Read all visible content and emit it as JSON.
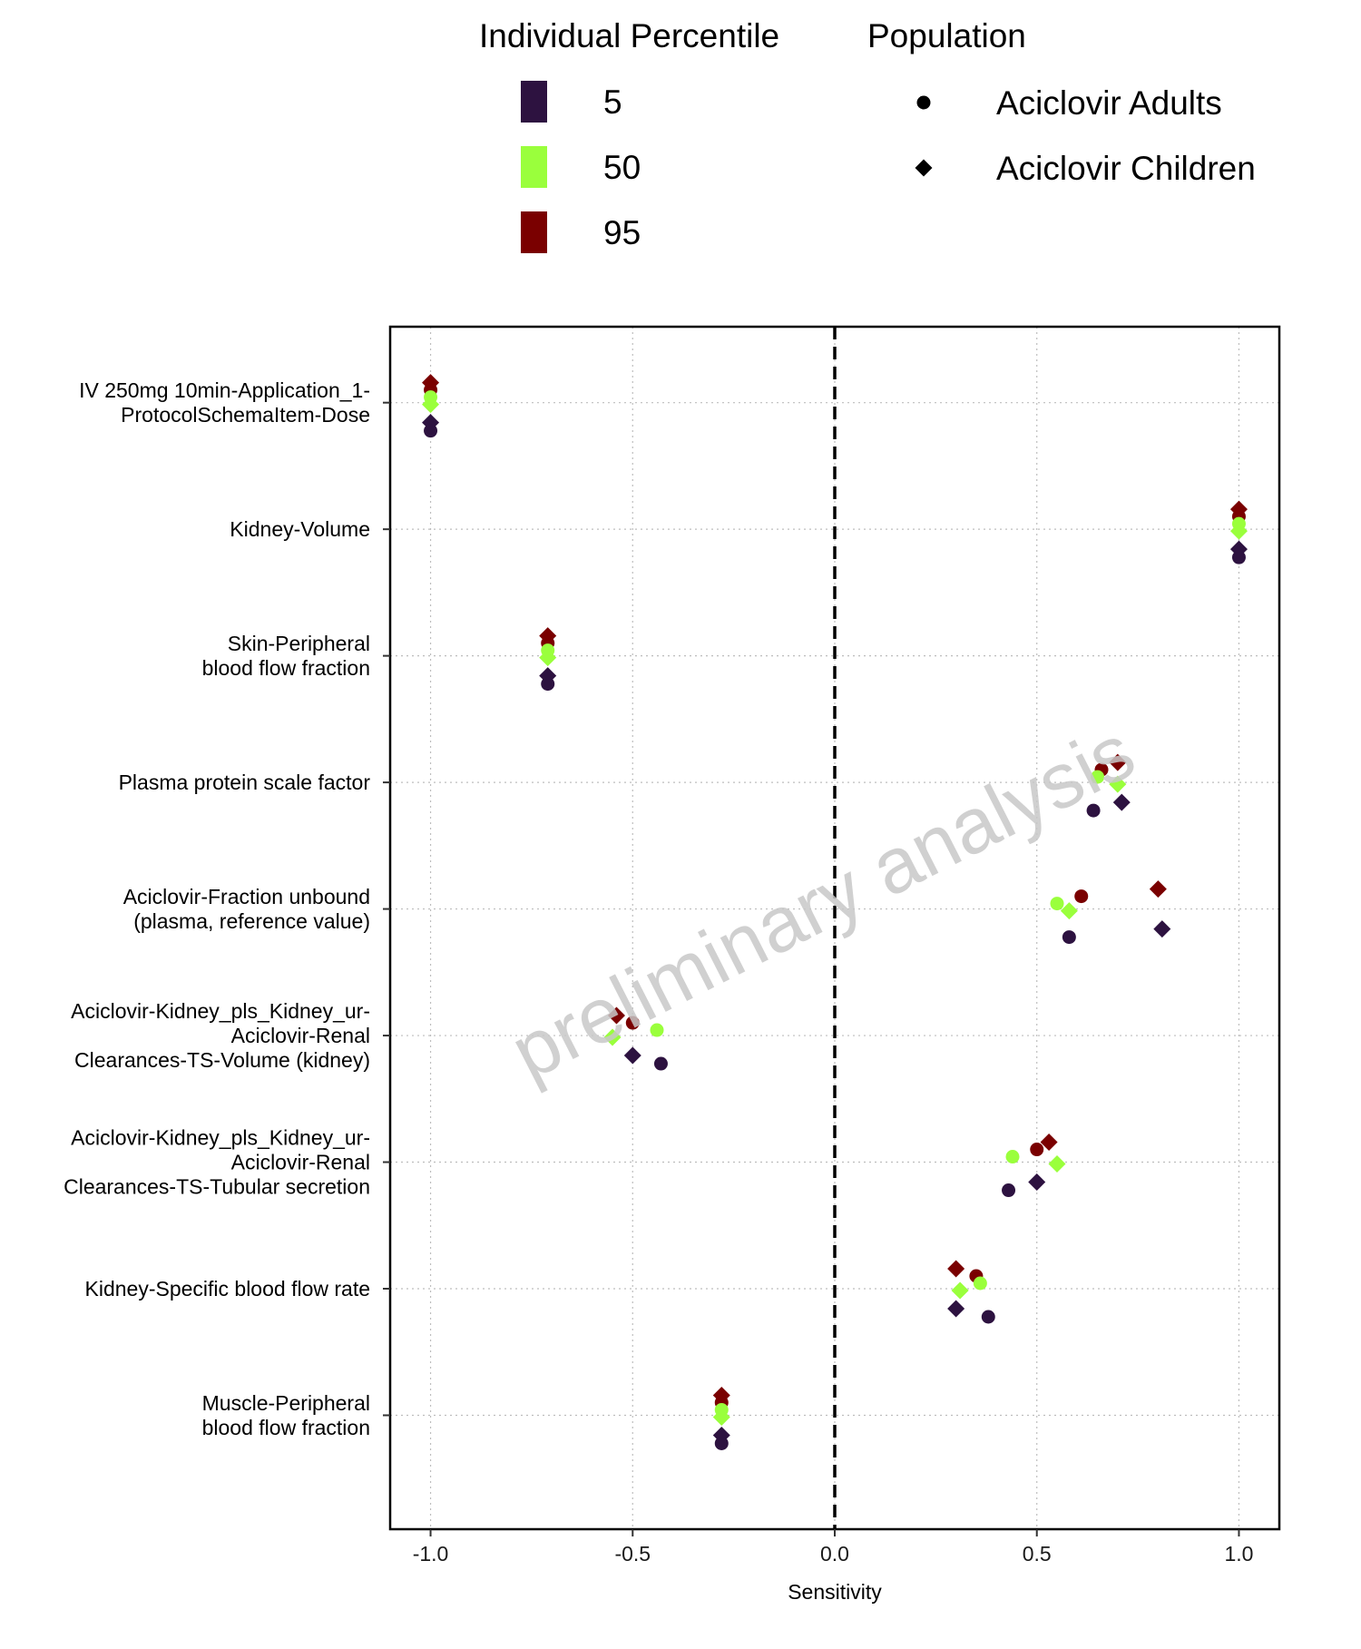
{
  "chart_data": {
    "type": "scatter",
    "xlabel": "Sensitivity",
    "xlim": [
      -1.1,
      1.1
    ],
    "xticks": [
      -1.0,
      -0.5,
      0.0,
      0.5,
      1.0
    ],
    "xtick_labels": [
      "-1.0",
      "-0.5",
      "0.0",
      "0.5",
      "1.0"
    ],
    "reference_line": {
      "x": 0,
      "style": "dashed"
    },
    "grid": true,
    "legend_position": "top",
    "legend": {
      "percentile_title": "Individual Percentile",
      "percentiles": [
        {
          "label": "5",
          "color": "#2d1240"
        },
        {
          "label": "50",
          "color": "#9aff3c"
        },
        {
          "label": "95",
          "color": "#7a0000"
        }
      ],
      "population_title": "Population",
      "populations": [
        {
          "label": "Aciclovir Adults",
          "shape": "circle"
        },
        {
          "label": "Aciclovir Children",
          "shape": "diamond"
        }
      ]
    },
    "watermark": "preliminary analysis",
    "parameters": [
      {
        "label": [
          "IV 250mg 10min-Application_1-",
          "ProtocolSchemaItem-Dose"
        ],
        "points": [
          {
            "pop": "Aciclovir Children",
            "pct": "95",
            "x": -1.0
          },
          {
            "pop": "Aciclovir Adults",
            "pct": "95",
            "x": -1.0
          },
          {
            "pop": "Aciclovir Adults",
            "pct": "50",
            "x": -1.0
          },
          {
            "pop": "Aciclovir Children",
            "pct": "50",
            "x": -1.0
          },
          {
            "pop": "Aciclovir Children",
            "pct": "5",
            "x": -1.0
          },
          {
            "pop": "Aciclovir Adults",
            "pct": "5",
            "x": -1.0
          }
        ]
      },
      {
        "label": [
          "Kidney-Volume"
        ],
        "points": [
          {
            "pop": "Aciclovir Children",
            "pct": "95",
            "x": 1.0
          },
          {
            "pop": "Aciclovir Adults",
            "pct": "95",
            "x": 1.0
          },
          {
            "pop": "Aciclovir Adults",
            "pct": "50",
            "x": 1.0
          },
          {
            "pop": "Aciclovir Children",
            "pct": "50",
            "x": 1.0
          },
          {
            "pop": "Aciclovir Children",
            "pct": "5",
            "x": 1.0
          },
          {
            "pop": "Aciclovir Adults",
            "pct": "5",
            "x": 1.0
          }
        ]
      },
      {
        "label": [
          "Skin-Peripheral",
          "blood flow fraction"
        ],
        "points": [
          {
            "pop": "Aciclovir Children",
            "pct": "95",
            "x": -0.71
          },
          {
            "pop": "Aciclovir Adults",
            "pct": "95",
            "x": -0.71
          },
          {
            "pop": "Aciclovir Adults",
            "pct": "50",
            "x": -0.71
          },
          {
            "pop": "Aciclovir Children",
            "pct": "50",
            "x": -0.71
          },
          {
            "pop": "Aciclovir Children",
            "pct": "5",
            "x": -0.71
          },
          {
            "pop": "Aciclovir Adults",
            "pct": "5",
            "x": -0.71
          }
        ]
      },
      {
        "label": [
          "Plasma protein scale factor"
        ],
        "points": [
          {
            "pop": "Aciclovir Children",
            "pct": "95",
            "x": 0.7
          },
          {
            "pop": "Aciclovir Adults",
            "pct": "95",
            "x": 0.66
          },
          {
            "pop": "Aciclovir Adults",
            "pct": "50",
            "x": 0.65
          },
          {
            "pop": "Aciclovir Children",
            "pct": "50",
            "x": 0.7
          },
          {
            "pop": "Aciclovir Children",
            "pct": "5",
            "x": 0.71
          },
          {
            "pop": "Aciclovir Adults",
            "pct": "5",
            "x": 0.64
          }
        ]
      },
      {
        "label": [
          "Aciclovir-Fraction unbound",
          "(plasma, reference value)"
        ],
        "points": [
          {
            "pop": "Aciclovir Children",
            "pct": "95",
            "x": 0.8
          },
          {
            "pop": "Aciclovir Adults",
            "pct": "95",
            "x": 0.61
          },
          {
            "pop": "Aciclovir Adults",
            "pct": "50",
            "x": 0.55
          },
          {
            "pop": "Aciclovir Children",
            "pct": "50",
            "x": 0.58
          },
          {
            "pop": "Aciclovir Children",
            "pct": "5",
            "x": 0.81
          },
          {
            "pop": "Aciclovir Adults",
            "pct": "5",
            "x": 0.58
          }
        ]
      },
      {
        "label": [
          "Aciclovir-Kidney_pls_Kidney_ur-",
          "Aciclovir-Renal",
          "Clearances-TS-Volume (kidney)"
        ],
        "points": [
          {
            "pop": "Aciclovir Children",
            "pct": "95",
            "x": -0.54
          },
          {
            "pop": "Aciclovir Adults",
            "pct": "95",
            "x": -0.5
          },
          {
            "pop": "Aciclovir Adults",
            "pct": "50",
            "x": -0.44
          },
          {
            "pop": "Aciclovir Children",
            "pct": "50",
            "x": -0.55
          },
          {
            "pop": "Aciclovir Children",
            "pct": "5",
            "x": -0.5
          },
          {
            "pop": "Aciclovir Adults",
            "pct": "5",
            "x": -0.43
          }
        ]
      },
      {
        "label": [
          "Aciclovir-Kidney_pls_Kidney_ur-",
          "Aciclovir-Renal",
          "Clearances-TS-Tubular secretion"
        ],
        "points": [
          {
            "pop": "Aciclovir Children",
            "pct": "95",
            "x": 0.53
          },
          {
            "pop": "Aciclovir Adults",
            "pct": "95",
            "x": 0.5
          },
          {
            "pop": "Aciclovir Adults",
            "pct": "50",
            "x": 0.44
          },
          {
            "pop": "Aciclovir Children",
            "pct": "50",
            "x": 0.55
          },
          {
            "pop": "Aciclovir Children",
            "pct": "5",
            "x": 0.5
          },
          {
            "pop": "Aciclovir Adults",
            "pct": "5",
            "x": 0.43
          }
        ]
      },
      {
        "label": [
          "Kidney-Specific blood flow rate"
        ],
        "points": [
          {
            "pop": "Aciclovir Children",
            "pct": "95",
            "x": 0.3
          },
          {
            "pop": "Aciclovir Adults",
            "pct": "95",
            "x": 0.35
          },
          {
            "pop": "Aciclovir Adults",
            "pct": "50",
            "x": 0.36
          },
          {
            "pop": "Aciclovir Children",
            "pct": "50",
            "x": 0.31
          },
          {
            "pop": "Aciclovir Children",
            "pct": "5",
            "x": 0.3
          },
          {
            "pop": "Aciclovir Adults",
            "pct": "5",
            "x": 0.38
          }
        ]
      },
      {
        "label": [
          "Muscle-Peripheral",
          "blood flow fraction"
        ],
        "points": [
          {
            "pop": "Aciclovir Children",
            "pct": "95",
            "x": -0.28
          },
          {
            "pop": "Aciclovir Adults",
            "pct": "95",
            "x": -0.28
          },
          {
            "pop": "Aciclovir Adults",
            "pct": "50",
            "x": -0.28
          },
          {
            "pop": "Aciclovir Children",
            "pct": "50",
            "x": -0.28
          },
          {
            "pop": "Aciclovir Children",
            "pct": "5",
            "x": -0.28
          },
          {
            "pop": "Aciclovir Adults",
            "pct": "5",
            "x": -0.28
          }
        ]
      }
    ]
  }
}
